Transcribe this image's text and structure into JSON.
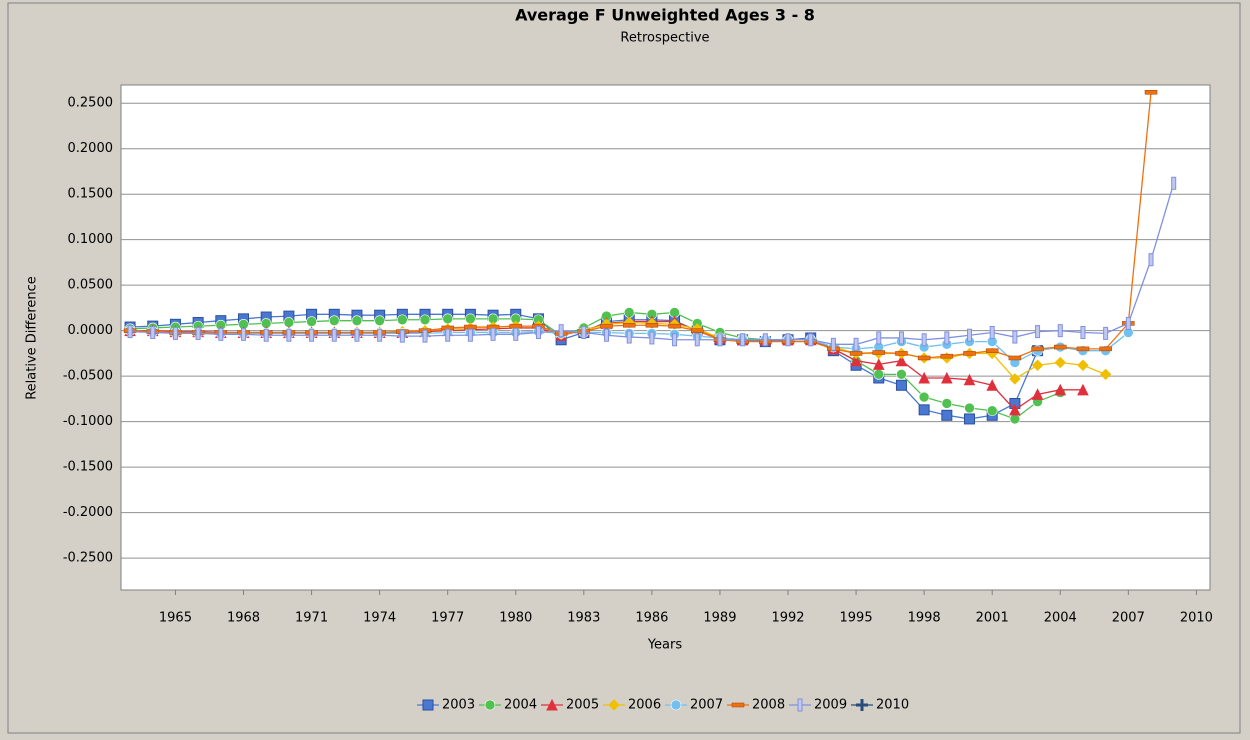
{
  "chart_data": {
    "type": "line",
    "title": "Average F Unweighted Ages 3 - 8",
    "subtitle": "Retrospective",
    "y_label": "Relative Difference",
    "x_label": "Years",
    "x": [
      1963,
      1964,
      1965,
      1966,
      1967,
      1968,
      1969,
      1970,
      1971,
      1972,
      1973,
      1974,
      1975,
      1976,
      1977,
      1978,
      1979,
      1980,
      1981,
      1982,
      1983,
      1984,
      1985,
      1986,
      1987,
      1988,
      1989,
      1990,
      1991,
      1992,
      1993,
      1994,
      1995,
      1996,
      1997,
      1998,
      1999,
      2000,
      2001,
      2002,
      2003,
      2004,
      2005,
      2006,
      2007,
      2008,
      2009
    ],
    "xlim": [
      1962.6,
      2010.6
    ],
    "xticks": [
      1965,
      1968,
      1971,
      1974,
      1977,
      1980,
      1983,
      1986,
      1989,
      1992,
      1995,
      1998,
      2001,
      2004,
      2007,
      2010
    ],
    "ylim": [
      -0.285,
      0.27
    ],
    "yticks": [
      {
        "value": 0.25,
        "label": "0.2500"
      },
      {
        "value": 0.2,
        "label": "0.2000"
      },
      {
        "value": 0.15,
        "label": "0.1500"
      },
      {
        "value": 0.1,
        "label": "0.1000"
      },
      {
        "value": 0.05,
        "label": "0.0500"
      },
      {
        "value": 0,
        "label": "0.0000"
      },
      {
        "value": -0.05,
        "label": "-0.0500"
      },
      {
        "value": -0.1,
        "label": "-0.1000"
      },
      {
        "value": -0.15,
        "label": "-0.1500"
      },
      {
        "value": -0.2,
        "label": "-0.2000"
      },
      {
        "value": -0.25,
        "label": "-0.2500"
      }
    ],
    "grid": true,
    "legend": "bottom",
    "series": [
      {
        "name": "2003",
        "color": "#4a78d0",
        "marker": "square",
        "values": [
          0.004,
          0.005,
          0.007,
          0.009,
          0.011,
          0.013,
          0.015,
          0.016,
          0.018,
          0.018,
          0.017,
          0.017,
          0.018,
          0.018,
          0.018,
          0.018,
          0.017,
          0.018,
          0.013,
          -0.01,
          -0.002,
          0.01,
          0.012,
          0.012,
          0.011,
          0.0,
          -0.01,
          -0.01,
          -0.012,
          -0.01,
          -0.008,
          -0.022,
          -0.038,
          -0.052,
          -0.06,
          -0.087,
          -0.093,
          -0.097,
          -0.093,
          -0.08,
          -0.022,
          null,
          null,
          null,
          null,
          null,
          null
        ]
      },
      {
        "name": "2004",
        "color": "#50c050",
        "marker": "circle",
        "values": [
          0.002,
          0.003,
          0.004,
          0.005,
          0.006,
          0.007,
          0.008,
          0.009,
          0.01,
          0.011,
          0.011,
          0.011,
          0.012,
          0.012,
          0.013,
          0.013,
          0.013,
          0.013,
          0.012,
          -0.005,
          0.003,
          0.016,
          0.02,
          0.018,
          0.02,
          0.008,
          -0.002,
          -0.008,
          -0.01,
          -0.01,
          -0.01,
          -0.02,
          -0.033,
          -0.048,
          -0.048,
          -0.073,
          -0.08,
          -0.085,
          -0.088,
          -0.097,
          -0.078,
          -0.068,
          null,
          null,
          null,
          null,
          null
        ]
      },
      {
        "name": "2005",
        "color": "#e0303c",
        "marker": "triangle",
        "values": [
          0.0,
          0.0,
          -0.001,
          -0.001,
          -0.002,
          -0.002,
          -0.002,
          -0.002,
          -0.002,
          -0.002,
          -0.002,
          -0.002,
          -0.002,
          -0.001,
          0.0,
          0.001,
          0.002,
          0.003,
          0.003,
          -0.005,
          0.0,
          0.008,
          0.01,
          0.01,
          0.01,
          0.0,
          -0.008,
          -0.01,
          -0.01,
          -0.01,
          -0.01,
          -0.02,
          -0.033,
          -0.037,
          -0.033,
          -0.052,
          -0.052,
          -0.054,
          -0.06,
          -0.087,
          -0.07,
          -0.065,
          -0.065,
          null,
          null,
          null,
          null
        ]
      },
      {
        "name": "2006",
        "color": "#f0c000",
        "marker": "diamond",
        "values": [
          0.0,
          -0.001,
          -0.002,
          -0.002,
          -0.003,
          -0.003,
          -0.003,
          -0.003,
          -0.003,
          -0.003,
          -0.002,
          -0.002,
          -0.001,
          0.0,
          0.002,
          0.003,
          0.004,
          0.005,
          0.005,
          -0.004,
          0.0,
          0.007,
          0.009,
          0.008,
          0.007,
          0.002,
          -0.008,
          -0.01,
          -0.01,
          -0.01,
          -0.01,
          -0.018,
          -0.025,
          -0.025,
          -0.025,
          -0.03,
          -0.03,
          -0.025,
          -0.025,
          -0.053,
          -0.038,
          -0.035,
          -0.038,
          -0.048,
          null,
          null,
          null
        ]
      },
      {
        "name": "2007",
        "color": "#70c0f0",
        "marker": "circle",
        "values": [
          0.0,
          -0.001,
          -0.002,
          -0.002,
          -0.003,
          -0.003,
          -0.003,
          -0.003,
          -0.003,
          -0.003,
          -0.003,
          -0.003,
          -0.003,
          -0.003,
          -0.002,
          -0.002,
          -0.002,
          -0.002,
          -0.001,
          -0.003,
          -0.002,
          -0.002,
          -0.003,
          -0.003,
          -0.004,
          -0.006,
          -0.008,
          -0.01,
          -0.01,
          -0.01,
          -0.01,
          -0.018,
          -0.02,
          -0.018,
          -0.012,
          -0.018,
          -0.015,
          -0.012,
          -0.012,
          -0.035,
          -0.022,
          -0.018,
          -0.022,
          -0.022,
          -0.002,
          null,
          null
        ]
      },
      {
        "name": "2008",
        "color": "#f07010",
        "marker": "dash",
        "values": [
          0.0,
          -0.001,
          -0.002,
          -0.002,
          -0.002,
          -0.002,
          -0.002,
          -0.002,
          -0.002,
          -0.002,
          -0.002,
          -0.002,
          -0.001,
          0.0,
          0.003,
          0.004,
          0.004,
          0.005,
          0.005,
          -0.003,
          -0.001,
          0.005,
          0.006,
          0.006,
          0.005,
          0.0,
          -0.01,
          -0.012,
          -0.012,
          -0.012,
          -0.012,
          -0.02,
          -0.025,
          -0.024,
          -0.025,
          -0.03,
          -0.028,
          -0.025,
          -0.022,
          -0.03,
          -0.02,
          -0.018,
          -0.02,
          -0.02,
          0.008,
          0.262,
          null
        ]
      },
      {
        "name": "2009",
        "color": "#8090e0",
        "marker": "bar",
        "values": [
          -0.001,
          -0.002,
          -0.003,
          -0.003,
          -0.004,
          -0.004,
          -0.005,
          -0.005,
          -0.005,
          -0.005,
          -0.005,
          -0.005,
          -0.006,
          -0.006,
          -0.005,
          -0.005,
          -0.004,
          -0.004,
          -0.002,
          0.0,
          -0.002,
          -0.005,
          -0.007,
          -0.008,
          -0.01,
          -0.01,
          -0.01,
          -0.01,
          -0.01,
          -0.01,
          -0.01,
          -0.015,
          -0.015,
          -0.008,
          -0.008,
          -0.01,
          -0.008,
          -0.005,
          -0.002,
          -0.007,
          -0.001,
          0.0,
          -0.002,
          -0.003,
          0.008,
          0.078,
          0.162
        ]
      },
      {
        "name": "2010",
        "color": "#284c7c",
        "marker": "cross",
        "values": [
          null,
          null,
          null,
          null,
          null,
          null,
          null,
          null,
          null,
          null,
          null,
          null,
          null,
          null,
          null,
          null,
          null,
          null,
          null,
          null,
          null,
          null,
          null,
          null,
          null,
          null,
          null,
          null,
          null,
          null,
          null,
          null,
          null,
          null,
          null,
          null,
          null,
          null,
          null,
          null,
          null,
          null,
          null,
          null,
          null,
          null,
          null
        ]
      }
    ]
  }
}
